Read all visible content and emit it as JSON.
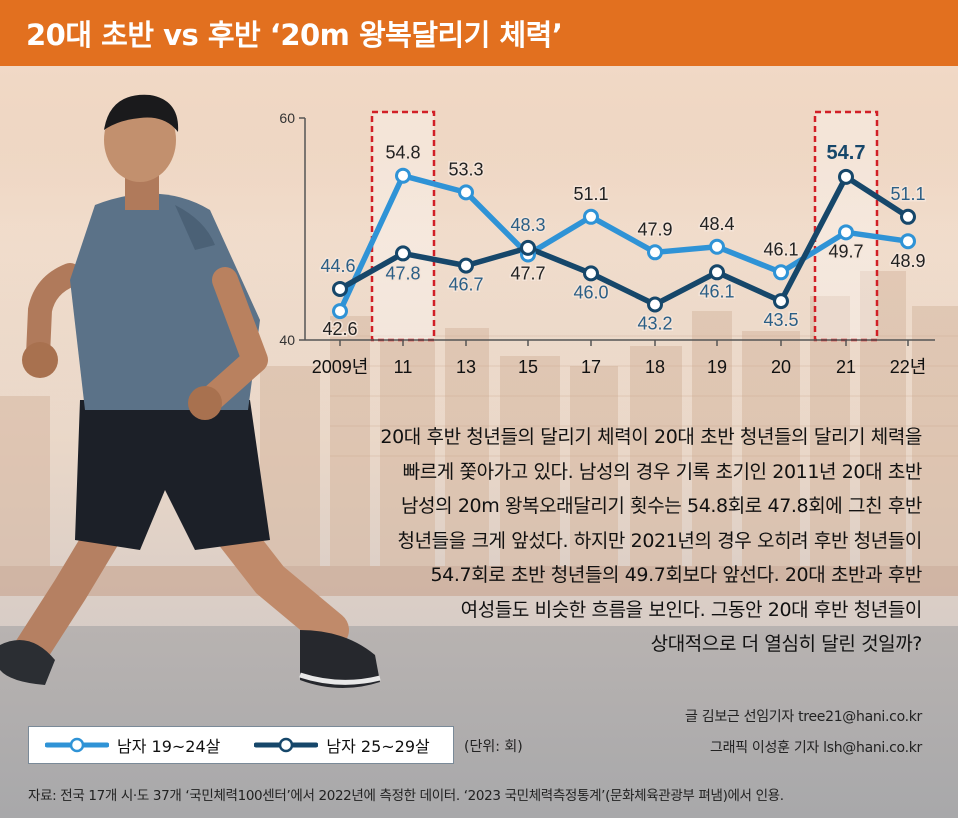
{
  "header": {
    "title": "20대 초반 vs 후반 ‘20m 왕복달리기 체력’"
  },
  "colors": {
    "header_bg": "#e2701f",
    "series_early": "#2f93d6",
    "series_late": "#16476a",
    "highlight_box": "#d11f26"
  },
  "chart_data": {
    "type": "line",
    "categories": [
      "2009년",
      "11",
      "13",
      "15",
      "17",
      "18",
      "19",
      "20",
      "21",
      "22년"
    ],
    "ylim": [
      40,
      60
    ],
    "yticks": [
      40,
      60
    ],
    "grid": false,
    "legend_position": "bottom-left",
    "highlighted_categories": [
      "11",
      "21"
    ],
    "series": [
      {
        "name": "남자 19~24살",
        "color": "#2f93d6",
        "values": [
          42.6,
          54.8,
          53.3,
          47.7,
          51.1,
          47.9,
          48.4,
          46.1,
          49.7,
          48.9
        ]
      },
      {
        "name": "남자 25~29살",
        "color": "#16476a",
        "values": [
          44.6,
          47.8,
          46.7,
          48.3,
          46.0,
          43.2,
          46.1,
          43.5,
          54.7,
          51.1
        ]
      }
    ]
  },
  "body": {
    "lines": [
      "20대 후반 청년들의 달리기 체력이 20대 초반 청년들의 달리기 체력을",
      "빠르게 쫓아가고 있다. 남성의 경우 기록 초기인 2011년 20대 초반",
      "남성의 20m 왕복오래달리기 횟수는 54.8회로 47.8회에 그친 후반",
      "청년들을 크게 앞섰다. 하지만 2021년의 경우 오히려 후반 청년들이",
      "54.7회로 초반 청년들의 49.7회보다 앞선다. 20대 초반과 후반",
      "여성들도 비슷한 흐름을 보인다. 그동안 20대 후반 청년들이",
      "상대적으로 더 열심히 달린 것일까?"
    ]
  },
  "credits": {
    "writer": "글 김보근 선임기자 tree21@hani.co.kr",
    "graphic": "그래픽 이성훈 기자 lsh@hani.co.kr"
  },
  "legend": {
    "items": [
      {
        "label": "남자 19~24살",
        "color": "#2f93d6"
      },
      {
        "label": "남자 25~29살",
        "color": "#16476a"
      }
    ],
    "unit": "(단위: 회)"
  },
  "source": "자료: 전국 17개 시·도 37개 ‘국민체력100센터’에서 2022년에 측정한 데이터. ‘2023 국민체력측정통계’(문화체육관광부 펴냄)에서 인용."
}
